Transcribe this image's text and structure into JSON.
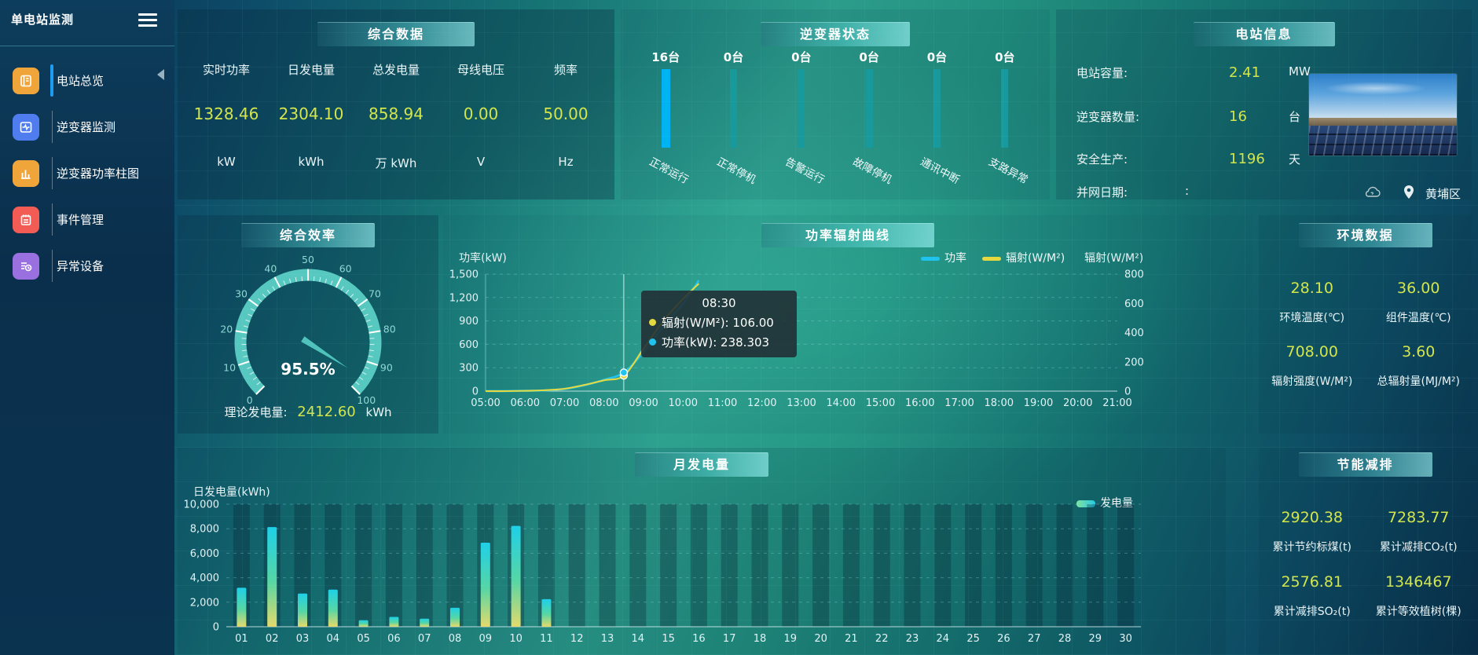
{
  "app": {
    "title": "单电站监测"
  },
  "sidebar": {
    "items": [
      {
        "label": "电站总览"
      },
      {
        "label": "逆变器监测"
      },
      {
        "label": "逆变器功率柱图"
      },
      {
        "label": "事件管理"
      },
      {
        "label": "异常设备"
      }
    ]
  },
  "summary": {
    "title": "综合数据",
    "metrics": [
      {
        "label": "实时功率",
        "value": "1328.46",
        "unit": "kW"
      },
      {
        "label": "日发电量",
        "value": "2304.10",
        "unit": "kWh"
      },
      {
        "label": "总发电量",
        "value": "858.94",
        "unit": "万 kWh"
      },
      {
        "label": "母线电压",
        "value": "0.00",
        "unit": "V"
      },
      {
        "label": "频率",
        "value": "50.00",
        "unit": "Hz"
      }
    ]
  },
  "inverter": {
    "title": "逆变器状态",
    "items": [
      {
        "count": "16台",
        "label": "正常运行"
      },
      {
        "count": "0台",
        "label": "正常停机"
      },
      {
        "count": "0台",
        "label": "告警运行"
      },
      {
        "count": "0台",
        "label": "故障停机"
      },
      {
        "count": "0台",
        "label": "通讯中断"
      },
      {
        "count": "0台",
        "label": "支路异常"
      }
    ]
  },
  "station": {
    "title": "电站信息",
    "rows": [
      {
        "label": "电站容量:",
        "value": "2.41",
        "unit": "MW"
      },
      {
        "label": "逆变器数量:",
        "value": "16",
        "unit": "台"
      },
      {
        "label": "安全生产:",
        "value": "1196",
        "unit": "天"
      },
      {
        "label": "并网日期:",
        "value": ":",
        "unit": ""
      }
    ],
    "location": "黄埔区"
  },
  "efficiency": {
    "title": "综合效率",
    "value_display": "95.5%",
    "theory_label": "理论发电量:",
    "theory_value": "2412.60",
    "theory_unit": "kWh"
  },
  "power_curve": {
    "title": "功率辐射曲线",
    "y_left_name": "功率(kW)",
    "y_right_name": "辐射(W/M²)",
    "legend": [
      {
        "label": "功率"
      },
      {
        "label": "辐射(W/M²)"
      }
    ],
    "tooltip": {
      "time": "08:30",
      "rows": [
        {
          "color": "#e5d93f",
          "text": "辐射(W/M²): 106.00"
        },
        {
          "color": "#1fc3ee",
          "text": "功率(kW): 238.303"
        }
      ]
    }
  },
  "environment": {
    "title": "环境数据",
    "metrics": [
      {
        "value": "28.10",
        "label": "环境温度(℃)"
      },
      {
        "value": "36.00",
        "label": "组件温度(℃)"
      },
      {
        "value": "708.00",
        "label": "辐射强度(W/M²)"
      },
      {
        "value": "3.60",
        "label": "总辐射量(MJ/M²)"
      }
    ]
  },
  "monthly": {
    "title": "月发电量",
    "ylabel": "日发电量(kWh)",
    "legend": "发电量"
  },
  "saving": {
    "title": "节能减排",
    "metrics": [
      {
        "value": "2920.38",
        "label": "累计节约标煤(t)"
      },
      {
        "value": "7283.77",
        "label": "累计减排CO₂(t)"
      },
      {
        "value": "2576.81",
        "label": "累计减排SO₂(t)"
      },
      {
        "value": "1346467",
        "label": "累计等效植树(棵)"
      }
    ]
  },
  "colors": {
    "accent_value": "#d3e54c",
    "power_line": "#1fc3ee",
    "radiation_line": "#e5d93f",
    "bar_top": "#1ed0e8",
    "bar_mid": "#57d6a4",
    "bar_bottom": "#e4da6b",
    "inverter_active": "#00b3f2",
    "inverter_idle": "#189a9c",
    "gauge": "#57c8c0",
    "active_menu_bar": "#1e9df0"
  },
  "chart_data": [
    {
      "id": "power_radiation",
      "type": "line",
      "title": "功率辐射曲线",
      "legend": [
        "功率",
        "辐射(W/M²)"
      ],
      "x_range": [
        5,
        21
      ],
      "x_ticks": [
        "05:00",
        "06:00",
        "07:00",
        "08:00",
        "09:00",
        "10:00",
        "11:00",
        "12:00",
        "13:00",
        "14:00",
        "15:00",
        "16:00",
        "17:00",
        "18:00",
        "19:00",
        "20:00",
        "21:00"
      ],
      "y_left": {
        "name": "功率(kW)",
        "min": 0,
        "max": 1500,
        "ticks": [
          "1,500",
          "1,200",
          "900",
          "600",
          "300",
          "0"
        ]
      },
      "y_right": {
        "name": "辐射(W/M²)",
        "min": 0,
        "max": 800,
        "ticks": [
          "800",
          "600",
          "400",
          "200",
          "0"
        ]
      },
      "series": [
        {
          "name": "功率",
          "axis": "left",
          "color": "#1fc3ee",
          "points": [
            [
              5,
              1
            ],
            [
              5.5,
              1
            ],
            [
              6,
              4
            ],
            [
              6.5,
              9
            ],
            [
              7,
              28
            ],
            [
              7.5,
              75
            ],
            [
              8,
              145
            ],
            [
              8.5,
              238.3
            ],
            [
              9,
              500
            ],
            [
              9.5,
              830
            ],
            [
              10,
              1120
            ],
            [
              10.4,
              1420
            ]
          ]
        },
        {
          "name": "辐射(W/M²)",
          "axis": "right",
          "color": "#e5d93f",
          "points": [
            [
              5,
              0
            ],
            [
              5.5,
              0
            ],
            [
              6,
              2
            ],
            [
              6.5,
              6
            ],
            [
              7,
              16
            ],
            [
              7.5,
              42
            ],
            [
              8,
              74
            ],
            [
              8.5,
              106
            ],
            [
              9,
              290
            ],
            [
              9.5,
              480
            ],
            [
              10,
              630
            ],
            [
              10.4,
              735
            ]
          ]
        }
      ],
      "tooltip": {
        "x": 8.5,
        "title": "08:30",
        "rows": [
          {
            "color": "#e5d93f",
            "text": "辐射(W/M²): 106.00",
            "value": 106.0
          },
          {
            "color": "#1fc3ee",
            "text": "功率(kW): 238.303",
            "value": 238.303
          }
        ]
      }
    },
    {
      "id": "monthly_energy",
      "type": "bar",
      "title": "月发电量",
      "ylabel": "日发电量(kWh)",
      "legend": [
        "发电量"
      ],
      "categories": [
        "01",
        "02",
        "03",
        "04",
        "05",
        "06",
        "07",
        "08",
        "09",
        "10",
        "11",
        "12",
        "13",
        "14",
        "15",
        "16",
        "17",
        "18",
        "19",
        "20",
        "21",
        "22",
        "23",
        "24",
        "25",
        "26",
        "27",
        "28",
        "29",
        "30"
      ],
      "values": [
        3180,
        8130,
        2710,
        3030,
        530,
        800,
        660,
        1550,
        6860,
        8230,
        2250,
        0,
        0,
        0,
        0,
        0,
        0,
        0,
        0,
        0,
        0,
        0,
        0,
        0,
        0,
        0,
        0,
        0,
        0,
        0
      ],
      "ylim": [
        0,
        10000
      ],
      "y_ticks": [
        "10,000",
        "8,000",
        "6,000",
        "4,000",
        "2,000",
        "0"
      ]
    },
    {
      "id": "inverter_status",
      "type": "bar",
      "title": "逆变器状态",
      "categories": [
        "正常运行",
        "正常停机",
        "告警运行",
        "故障停机",
        "通讯中断",
        "支路异常"
      ],
      "values": [
        16,
        0,
        0,
        0,
        0,
        0
      ]
    },
    {
      "id": "efficiency_gauge",
      "type": "gauge",
      "title": "综合效率",
      "value": 95.5,
      "min": 0,
      "max": 100,
      "tick_labels": [
        "0",
        "10",
        "20",
        "30",
        "40",
        "50",
        "60",
        "70",
        "80",
        "90",
        "100"
      ]
    }
  ]
}
